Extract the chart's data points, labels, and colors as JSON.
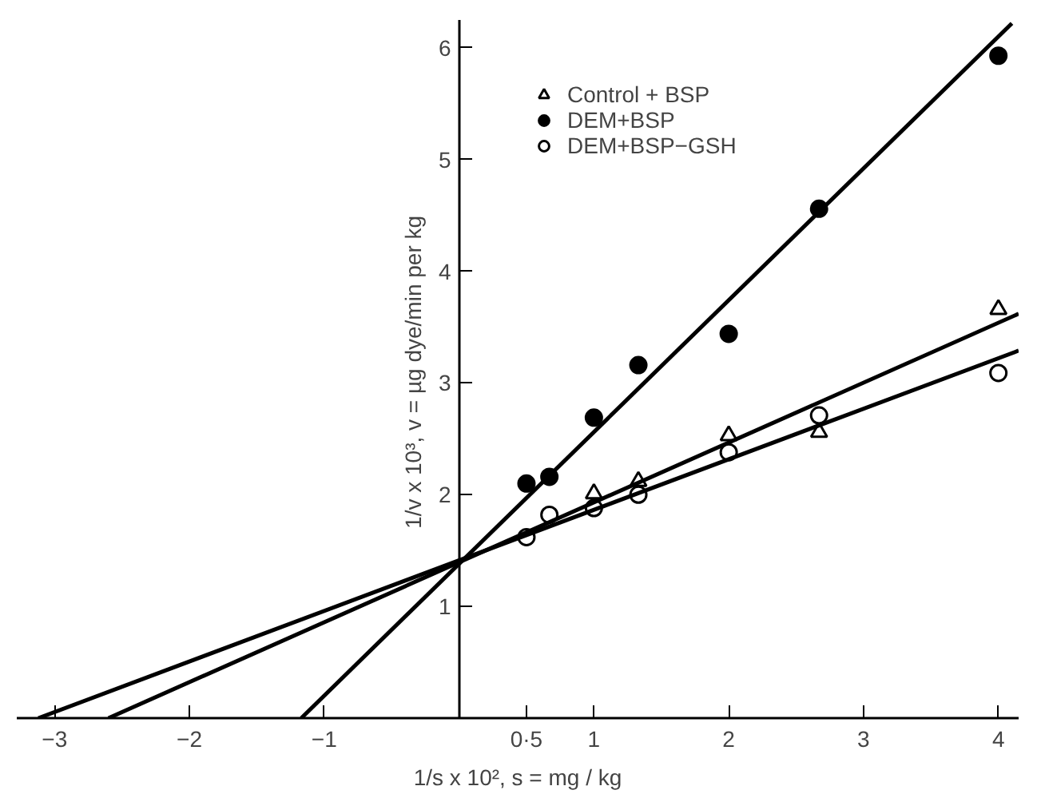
{
  "chart_data": {
    "type": "scatter",
    "xlabel": "1/s x 10², s = mg / kg",
    "ylabel": "1/v x 10³,  v = µg dye/min per kg",
    "xlim": [
      -3.28,
      4.15
    ],
    "ylim": [
      0,
      6.25
    ],
    "xticks": [
      -3,
      -2,
      -1,
      {
        "value": 0.5,
        "label": "0·5"
      },
      1,
      2,
      3,
      4
    ],
    "yticks": [
      1,
      2,
      3,
      4,
      5,
      6
    ],
    "grid": false,
    "legend": "top",
    "series": [
      {
        "name": "Control + BSP",
        "color": "#000000",
        "marker": "triangle",
        "x": [
          1,
          1.33,
          2,
          2.67,
          4
        ],
        "values": [
          2.01,
          2.12,
          2.53,
          2.56,
          3.66
        ]
      },
      {
        "name": "DEM+BSP",
        "color": "#000000",
        "marker": "circle",
        "x": [
          0.5,
          0.67,
          1,
          1.33,
          2,
          2.67,
          4
        ],
        "values": [
          2.1,
          2.16,
          2.69,
          3.16,
          3.44,
          4.56,
          5.93
        ]
      },
      {
        "name": "DEM+BSP−GSH",
        "color": "#000000",
        "marker": "circle_open",
        "x": [
          0.5,
          0.67,
          1,
          1.33,
          2,
          2.67,
          4
        ],
        "values": [
          1.62,
          1.82,
          1.88,
          2.0,
          2.38,
          2.71,
          3.09
        ]
      },
      {
        "type": "line",
        "color": "#000000",
        "x": [
          -2.6,
          4.15
        ],
        "values": [
          0,
          3.62
        ]
      },
      {
        "type": "line",
        "color": "#000000",
        "x": [
          -1.17,
          4.1
        ],
        "values": [
          0,
          6.22
        ]
      },
      {
        "type": "line",
        "color": "#000000",
        "x": [
          -3.12,
          4.15
        ],
        "values": [
          0,
          3.29
        ]
      }
    ]
  }
}
